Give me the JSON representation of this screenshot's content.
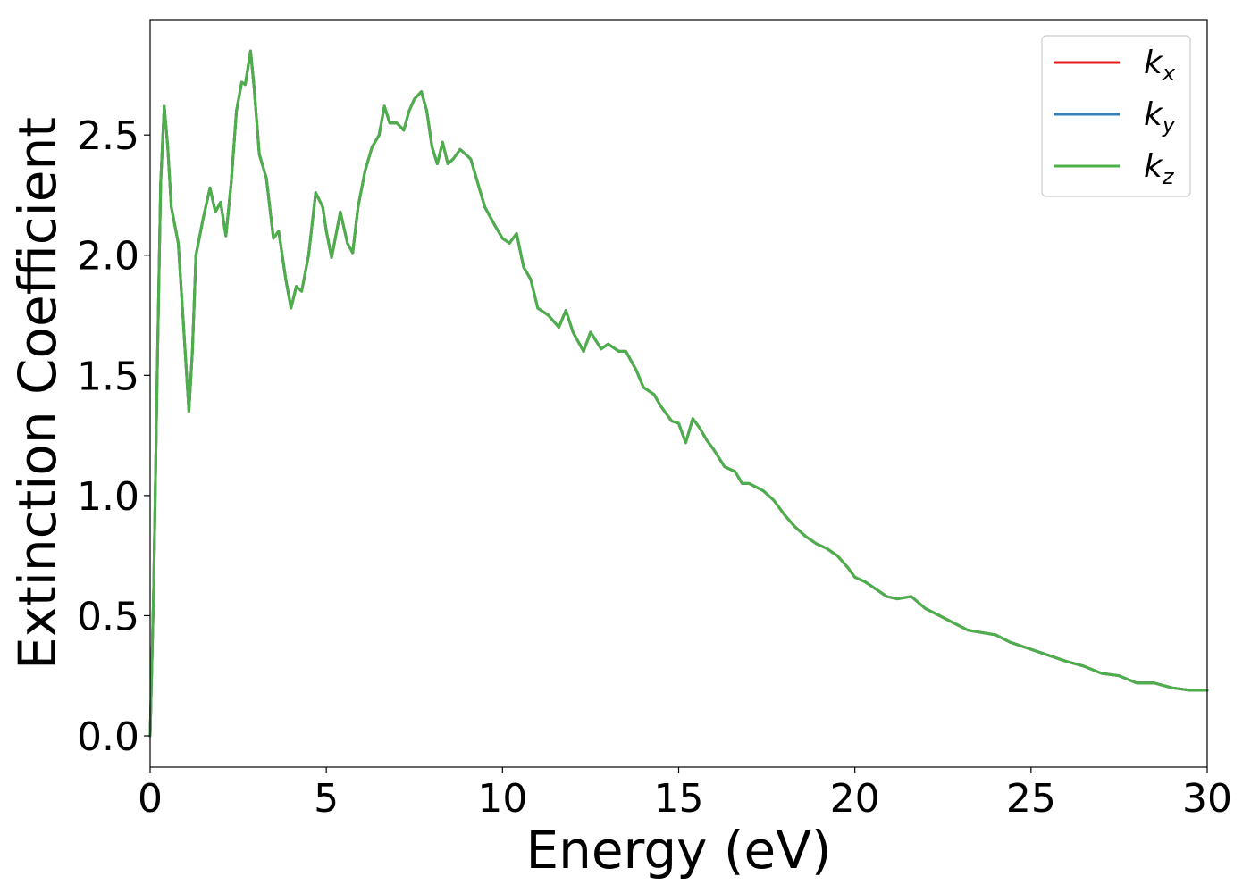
{
  "chart_data": {
    "type": "line",
    "xlabel": "Energy (eV)",
    "ylabel": "Extinction Coefficient",
    "xlim": [
      0,
      30
    ],
    "ylim": [
      -0.13,
      2.98
    ],
    "x_ticks": [
      0,
      5,
      10,
      15,
      20,
      25,
      30
    ],
    "x_tick_labels": [
      "0",
      "5",
      "10",
      "15",
      "20",
      "25",
      "30"
    ],
    "y_ticks": [
      0.0,
      0.5,
      1.0,
      1.5,
      2.0,
      2.5
    ],
    "y_tick_labels": [
      "0.0",
      "0.5",
      "1.0",
      "1.5",
      "2.0",
      "2.5"
    ],
    "grid": false,
    "legend": {
      "position": "top-right",
      "entries": [
        {
          "base": "k",
          "sub": "x",
          "color": "#e41a1c"
        },
        {
          "base": "k",
          "sub": "y",
          "color": "#377eb8"
        },
        {
          "base": "k",
          "sub": "z",
          "color": "#4daf4a"
        }
      ]
    },
    "series": [
      {
        "color": "#e41a1c",
        "ref": "shared"
      },
      {
        "color": "#377eb8",
        "ref": "shared"
      },
      {
        "color": "#4daf4a",
        "ref": "shared"
      }
    ],
    "shared_points": [
      [
        0.0,
        0.0
      ],
      [
        0.1,
        0.6
      ],
      [
        0.2,
        1.5
      ],
      [
        0.3,
        2.3
      ],
      [
        0.4,
        2.62
      ],
      [
        0.5,
        2.45
      ],
      [
        0.6,
        2.2
      ],
      [
        0.8,
        2.05
      ],
      [
        0.95,
        1.7
      ],
      [
        1.1,
        1.35
      ],
      [
        1.2,
        1.6
      ],
      [
        1.3,
        2.0
      ],
      [
        1.5,
        2.15
      ],
      [
        1.7,
        2.28
      ],
      [
        1.85,
        2.18
      ],
      [
        2.0,
        2.22
      ],
      [
        2.15,
        2.08
      ],
      [
        2.3,
        2.3
      ],
      [
        2.45,
        2.6
      ],
      [
        2.6,
        2.72
      ],
      [
        2.7,
        2.71
      ],
      [
        2.85,
        2.85
      ],
      [
        2.95,
        2.7
      ],
      [
        3.1,
        2.42
      ],
      [
        3.3,
        2.32
      ],
      [
        3.5,
        2.07
      ],
      [
        3.65,
        2.1
      ],
      [
        3.85,
        1.9
      ],
      [
        4.0,
        1.78
      ],
      [
        4.15,
        1.87
      ],
      [
        4.3,
        1.85
      ],
      [
        4.5,
        2.0
      ],
      [
        4.7,
        2.26
      ],
      [
        4.9,
        2.2
      ],
      [
        5.0,
        2.1
      ],
      [
        5.15,
        1.99
      ],
      [
        5.4,
        2.18
      ],
      [
        5.6,
        2.05
      ],
      [
        5.75,
        2.01
      ],
      [
        5.9,
        2.2
      ],
      [
        6.1,
        2.35
      ],
      [
        6.3,
        2.45
      ],
      [
        6.5,
        2.5
      ],
      [
        6.65,
        2.62
      ],
      [
        6.8,
        2.55
      ],
      [
        7.0,
        2.55
      ],
      [
        7.2,
        2.52
      ],
      [
        7.35,
        2.6
      ],
      [
        7.5,
        2.65
      ],
      [
        7.7,
        2.68
      ],
      [
        7.85,
        2.6
      ],
      [
        8.0,
        2.45
      ],
      [
        8.15,
        2.38
      ],
      [
        8.3,
        2.47
      ],
      [
        8.45,
        2.38
      ],
      [
        8.6,
        2.4
      ],
      [
        8.8,
        2.44
      ],
      [
        9.1,
        2.4
      ],
      [
        9.3,
        2.3
      ],
      [
        9.5,
        2.2
      ],
      [
        9.8,
        2.12
      ],
      [
        10.0,
        2.07
      ],
      [
        10.2,
        2.05
      ],
      [
        10.4,
        2.09
      ],
      [
        10.6,
        1.95
      ],
      [
        10.8,
        1.9
      ],
      [
        11.0,
        1.78
      ],
      [
        11.3,
        1.75
      ],
      [
        11.6,
        1.7
      ],
      [
        11.8,
        1.77
      ],
      [
        12.0,
        1.68
      ],
      [
        12.3,
        1.6
      ],
      [
        12.5,
        1.68
      ],
      [
        12.8,
        1.61
      ],
      [
        13.0,
        1.63
      ],
      [
        13.3,
        1.6
      ],
      [
        13.5,
        1.6
      ],
      [
        13.8,
        1.52
      ],
      [
        14.0,
        1.45
      ],
      [
        14.3,
        1.42
      ],
      [
        14.5,
        1.37
      ],
      [
        14.8,
        1.31
      ],
      [
        15.0,
        1.3
      ],
      [
        15.2,
        1.22
      ],
      [
        15.4,
        1.32
      ],
      [
        15.6,
        1.28
      ],
      [
        15.8,
        1.23
      ],
      [
        16.0,
        1.19
      ],
      [
        16.3,
        1.12
      ],
      [
        16.6,
        1.1
      ],
      [
        16.8,
        1.05
      ],
      [
        17.0,
        1.05
      ],
      [
        17.4,
        1.02
      ],
      [
        17.7,
        0.98
      ],
      [
        18.0,
        0.92
      ],
      [
        18.3,
        0.87
      ],
      [
        18.6,
        0.83
      ],
      [
        18.9,
        0.8
      ],
      [
        19.2,
        0.78
      ],
      [
        19.5,
        0.75
      ],
      [
        19.8,
        0.7
      ],
      [
        20.0,
        0.66
      ],
      [
        20.3,
        0.64
      ],
      [
        20.6,
        0.61
      ],
      [
        20.9,
        0.58
      ],
      [
        21.2,
        0.57
      ],
      [
        21.6,
        0.58
      ],
      [
        22.0,
        0.53
      ],
      [
        22.4,
        0.5
      ],
      [
        22.8,
        0.47
      ],
      [
        23.2,
        0.44
      ],
      [
        23.6,
        0.43
      ],
      [
        24.0,
        0.42
      ],
      [
        24.4,
        0.39
      ],
      [
        24.8,
        0.37
      ],
      [
        25.2,
        0.35
      ],
      [
        25.6,
        0.33
      ],
      [
        26.0,
        0.31
      ],
      [
        26.5,
        0.29
      ],
      [
        27.0,
        0.26
      ],
      [
        27.5,
        0.25
      ],
      [
        28.0,
        0.22
      ],
      [
        28.5,
        0.22
      ],
      [
        29.0,
        0.2
      ],
      [
        29.5,
        0.19
      ],
      [
        30.0,
        0.19
      ]
    ]
  }
}
